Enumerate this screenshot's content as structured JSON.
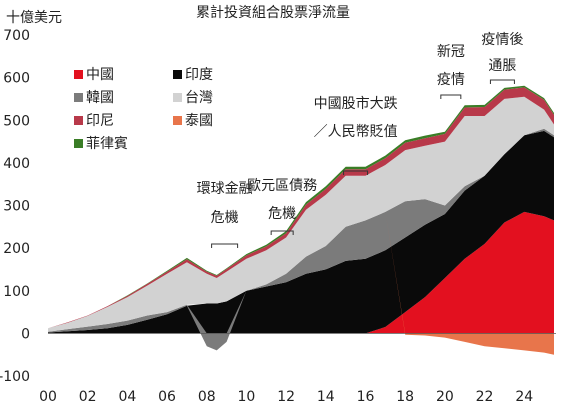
{
  "chart_data": {
    "type": "area",
    "title": "累計投資組合股票淨流量",
    "ylabel": "十億美元",
    "ylim": [
      -100,
      700
    ],
    "yticks": [
      -100,
      0,
      100,
      200,
      300,
      400,
      500,
      600,
      700
    ],
    "xlim": [
      2000,
      2025.6
    ],
    "x_tick_values": [
      2000,
      2002,
      2004,
      2006,
      2008,
      2010,
      2012,
      2014,
      2016,
      2018,
      2020,
      2022,
      2024
    ],
    "x_tick_labels": [
      "00",
      "02",
      "04",
      "06",
      "08",
      "10",
      "12",
      "14",
      "16",
      "18",
      "20",
      "22",
      "24"
    ],
    "grid": false,
    "legend_position": "top-left",
    "x": [
      2000,
      2001,
      2002,
      2003,
      2004,
      2005,
      2006,
      2007,
      2008,
      2008.5,
      2009,
      2010,
      2011,
      2012,
      2013,
      2014,
      2015,
      2016,
      2017,
      2018,
      2019,
      2020,
      2021,
      2022,
      2023,
      2024,
      2025,
      2025.5
    ],
    "series": [
      {
        "name": "中國",
        "color": "#e3101f",
        "values": [
          0,
          0,
          0,
          0,
          0,
          0,
          0,
          0,
          0,
          0,
          0,
          0,
          0,
          0,
          0,
          0,
          0,
          0,
          15,
          50,
          85,
          130,
          175,
          210,
          260,
          285,
          275,
          265
        ]
      },
      {
        "name": "印度",
        "color": "#0a0a0a",
        "values": [
          2,
          5,
          8,
          12,
          20,
          32,
          45,
          65,
          70,
          70,
          75,
          100,
          110,
          120,
          140,
          150,
          170,
          175,
          180,
          175,
          170,
          150,
          160,
          160,
          160,
          180,
          200,
          195
        ]
      },
      {
        "name": "韓國",
        "color": "#7b7b7b",
        "values": [
          2,
          5,
          8,
          10,
          10,
          10,
          5,
          2,
          -30,
          -40,
          -20,
          0,
          5,
          20,
          40,
          55,
          80,
          90,
          90,
          85,
          60,
          20,
          10,
          0,
          0,
          0,
          5,
          5
        ]
      },
      {
        "name": "泰國",
        "color": "#e8754b",
        "values": [
          0,
          0,
          0,
          0,
          0,
          0,
          0,
          0,
          0,
          0,
          0,
          0,
          0,
          0,
          0,
          0,
          0,
          0,
          0,
          -3,
          -5,
          -10,
          -20,
          -30,
          -35,
          -40,
          -45,
          -50
        ]
      },
      {
        "name": "台灣",
        "color": "#d2d2d2",
        "values": [
          8,
          15,
          25,
          40,
          55,
          70,
          90,
          100,
          70,
          60,
          70,
          75,
          80,
          85,
          110,
          120,
          120,
          105,
          110,
          120,
          125,
          150,
          165,
          140,
          130,
          90,
          45,
          25
        ]
      },
      {
        "name": "印尼",
        "color": "#b8394a",
        "values": [
          0,
          1,
          1,
          2,
          3,
          4,
          5,
          7,
          5,
          5,
          6,
          8,
          9,
          10,
          12,
          14,
          15,
          15,
          16,
          17,
          18,
          18,
          20,
          21,
          22,
          22,
          23,
          23
        ]
      },
      {
        "name": "菲律賓",
        "color": "#3a7d26",
        "values": [
          0,
          0,
          0,
          0,
          1,
          1,
          2,
          3,
          2,
          2,
          2,
          3,
          4,
          5,
          6,
          6,
          6,
          6,
          6,
          6,
          6,
          5,
          5,
          5,
          4,
          4,
          4,
          4
        ]
      }
    ],
    "annotations": [
      {
        "lines": [
          "環球金融",
          "危機"
        ],
        "x": 2008.9
      },
      {
        "lines": [
          "歐元區債務",
          "危機"
        ],
        "x": 2011.8
      },
      {
        "lines": [
          "中國股市大跌",
          "／人民幣貶值"
        ],
        "x": 2015.5
      },
      {
        "lines": [
          "新冠",
          "疫情"
        ],
        "x": 2020.3
      },
      {
        "lines": [
          "疫情後",
          "通脹"
        ],
        "x": 2022.9
      }
    ]
  }
}
